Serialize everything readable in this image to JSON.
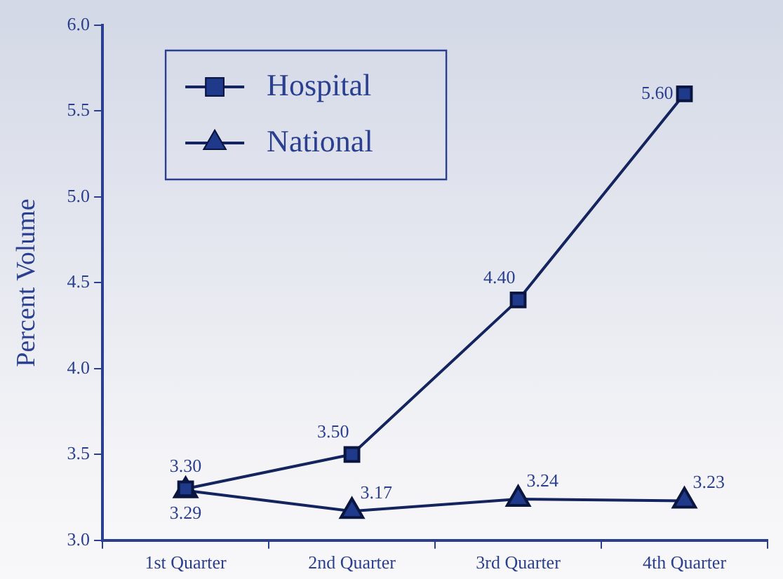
{
  "chart_data": {
    "type": "line",
    "ylabel": "Percent Volume",
    "categories": [
      "1st Quarter",
      "2nd Quarter",
      "3rd Quarter",
      "4th Quarter"
    ],
    "series": [
      {
        "name": "Hospital",
        "color": "#1f3a8a",
        "marker": "square",
        "values": [
          3.3,
          3.5,
          4.4,
          5.6
        ],
        "value_labels": [
          "3.30",
          "3.50",
          "4.40",
          "5.60"
        ]
      },
      {
        "name": "National",
        "color": "#1f3a8a",
        "marker": "triangle",
        "values": [
          3.29,
          3.17,
          3.24,
          3.23
        ],
        "value_labels": [
          "3.29",
          "3.17",
          "3.24",
          "3.23"
        ]
      }
    ],
    "ylim": [
      3.0,
      6.0
    ],
    "yticks": [
      {
        "value": 3.0,
        "label": "3.0"
      },
      {
        "value": 3.5,
        "label": "3.5"
      },
      {
        "value": 4.0,
        "label": "4.0"
      },
      {
        "value": 4.5,
        "label": "4.5"
      },
      {
        "value": 5.0,
        "label": "5.0"
      },
      {
        "value": 5.5,
        "label": "5.5"
      },
      {
        "value": 6.0,
        "label": "6.0"
      }
    ],
    "grid": false,
    "legend": "top left",
    "line_style": "solid"
  }
}
